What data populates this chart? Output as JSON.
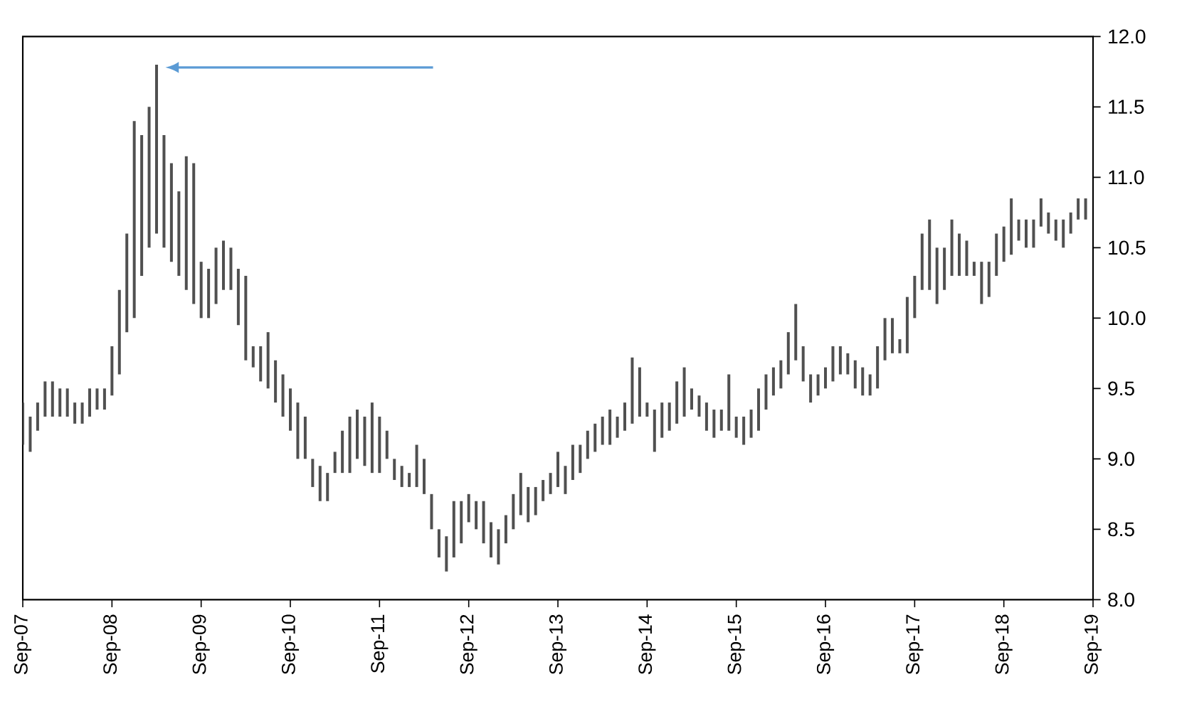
{
  "chart_data": {
    "type": "bar",
    "color": "#505050",
    "x": [
      "2007-09",
      "2007-10",
      "2007-11",
      "2007-12",
      "2008-01",
      "2008-02",
      "2008-03",
      "2008-04",
      "2008-05",
      "2008-06",
      "2008-07",
      "2008-08",
      "2008-09",
      "2008-10",
      "2008-11",
      "2008-12",
      "2009-01",
      "2009-02",
      "2009-03",
      "2009-04",
      "2009-05",
      "2009-06",
      "2009-07",
      "2009-08",
      "2009-09",
      "2009-10",
      "2009-11",
      "2009-12",
      "2010-01",
      "2010-02",
      "2010-03",
      "2010-04",
      "2010-05",
      "2010-06",
      "2010-07",
      "2010-08",
      "2010-09",
      "2010-10",
      "2010-11",
      "2010-12",
      "2011-01",
      "2011-02",
      "2011-03",
      "2011-04",
      "2011-05",
      "2011-06",
      "2011-07",
      "2011-08",
      "2011-09",
      "2011-10",
      "2011-11",
      "2011-12",
      "2012-01",
      "2012-02",
      "2012-03",
      "2012-04",
      "2012-05",
      "2012-06",
      "2012-07",
      "2012-08",
      "2012-09",
      "2012-10",
      "2012-11",
      "2012-12",
      "2013-01",
      "2013-02",
      "2013-03",
      "2013-04",
      "2013-05",
      "2013-06",
      "2013-07",
      "2013-08",
      "2013-09",
      "2013-10",
      "2013-11",
      "2013-12",
      "2014-01",
      "2014-02",
      "2014-03",
      "2014-04",
      "2014-05",
      "2014-06",
      "2014-07",
      "2014-08",
      "2014-09",
      "2014-10",
      "2014-11",
      "2014-12",
      "2015-01",
      "2015-02",
      "2015-03",
      "2015-04",
      "2015-05",
      "2015-06",
      "2015-07",
      "2015-08",
      "2015-09",
      "2015-10",
      "2015-11",
      "2015-12",
      "2016-01",
      "2016-02",
      "2016-03",
      "2016-04",
      "2016-05",
      "2016-06",
      "2016-07",
      "2016-08",
      "2016-09",
      "2016-10",
      "2016-11",
      "2016-12",
      "2017-01",
      "2017-02",
      "2017-03",
      "2017-04",
      "2017-05",
      "2017-06",
      "2017-07",
      "2017-08",
      "2017-09",
      "2017-10",
      "2017-11",
      "2017-12",
      "2018-01",
      "2018-02",
      "2018-03",
      "2018-04",
      "2018-05",
      "2018-06",
      "2018-07",
      "2018-08",
      "2018-09",
      "2018-10",
      "2018-11",
      "2018-12",
      "2019-01",
      "2019-02",
      "2019-03",
      "2019-04",
      "2019-05",
      "2019-06",
      "2019-07",
      "2019-08"
    ],
    "base": [
      9.1,
      9.05,
      9.2,
      9.3,
      9.3,
      9.3,
      9.3,
      9.25,
      9.25,
      9.3,
      9.35,
      9.35,
      9.45,
      9.6,
      9.9,
      10.0,
      10.3,
      10.5,
      10.6,
      10.5,
      10.4,
      10.3,
      10.2,
      10.1,
      10.0,
      10.0,
      10.1,
      10.2,
      10.2,
      9.95,
      9.7,
      9.65,
      9.55,
      9.5,
      9.4,
      9.3,
      9.2,
      9.0,
      9.0,
      8.8,
      8.7,
      8.7,
      8.9,
      8.9,
      8.9,
      9.0,
      8.95,
      8.9,
      8.9,
      9.0,
      8.85,
      8.8,
      8.8,
      8.8,
      8.75,
      8.5,
      8.3,
      8.2,
      8.3,
      8.4,
      8.55,
      8.5,
      8.4,
      8.3,
      8.25,
      8.4,
      8.5,
      8.6,
      8.55,
      8.6,
      8.7,
      8.75,
      8.8,
      8.75,
      8.85,
      8.9,
      9.0,
      9.05,
      9.1,
      9.1,
      9.15,
      9.2,
      9.25,
      9.3,
      9.3,
      9.05,
      9.15,
      9.2,
      9.25,
      9.3,
      9.35,
      9.3,
      9.2,
      9.15,
      9.2,
      9.2,
      9.15,
      9.1,
      9.15,
      9.2,
      9.35,
      9.45,
      9.5,
      9.6,
      9.7,
      9.55,
      9.4,
      9.45,
      9.5,
      9.55,
      9.6,
      9.6,
      9.5,
      9.45,
      9.45,
      9.5,
      9.7,
      9.75,
      9.75,
      9.75,
      10.0,
      10.2,
      10.2,
      10.1,
      10.2,
      10.3,
      10.3,
      10.3,
      10.3,
      10.1,
      10.15,
      10.3,
      10.4,
      10.45,
      10.55,
      10.5,
      10.5,
      10.65,
      10.6,
      10.55,
      10.5,
      10.6,
      10.7,
      10.7
    ],
    "values": [
      0.3,
      0.25,
      0.2,
      0.25,
      0.25,
      0.2,
      0.2,
      0.15,
      0.15,
      0.2,
      0.15,
      0.15,
      0.35,
      0.6,
      0.7,
      1.4,
      1.0,
      1.0,
      1.2,
      0.8,
      0.7,
      0.6,
      0.95,
      1.0,
      0.4,
      0.35,
      0.4,
      0.35,
      0.3,
      0.4,
      0.6,
      0.15,
      0.25,
      0.4,
      0.3,
      0.3,
      0.3,
      0.4,
      0.3,
      0.2,
      0.25,
      0.2,
      0.15,
      0.3,
      0.4,
      0.35,
      0.35,
      0.5,
      0.4,
      0.2,
      0.15,
      0.15,
      0.1,
      0.3,
      0.25,
      0.25,
      0.2,
      0.25,
      0.4,
      0.3,
      0.2,
      0.2,
      0.3,
      0.25,
      0.25,
      0.2,
      0.25,
      0.3,
      0.25,
      0.2,
      0.15,
      0.15,
      0.25,
      0.2,
      0.25,
      0.2,
      0.2,
      0.2,
      0.2,
      0.25,
      0.15,
      0.2,
      0.47,
      0.35,
      0.1,
      0.3,
      0.25,
      0.2,
      0.3,
      0.35,
      0.15,
      0.15,
      0.2,
      0.2,
      0.15,
      0.4,
      0.15,
      0.2,
      0.2,
      0.3,
      0.25,
      0.2,
      0.2,
      0.3,
      0.4,
      0.25,
      0.2,
      0.15,
      0.15,
      0.25,
      0.2,
      0.15,
      0.2,
      0.2,
      0.15,
      0.3,
      0.3,
      0.25,
      0.1,
      0.4,
      0.3,
      0.4,
      0.5,
      0.4,
      0.3,
      0.4,
      0.3,
      0.25,
      0.1,
      0.3,
      0.25,
      0.3,
      0.25,
      0.4,
      0.15,
      0.2,
      0.2,
      0.2,
      0.15,
      0.15,
      0.2,
      0.15,
      0.15,
      0.15
    ],
    "xlim": [
      "2007-09",
      "2019-09"
    ],
    "xticks": [
      {
        "value": "2007-09",
        "label": "Sep-07"
      },
      {
        "value": "2008-09",
        "label": "Sep-08"
      },
      {
        "value": "2009-09",
        "label": "Sep-09"
      },
      {
        "value": "2010-09",
        "label": "Sep-10"
      },
      {
        "value": "2011-09",
        "label": "Sep-11"
      },
      {
        "value": "2012-09",
        "label": "Sep-12"
      },
      {
        "value": "2013-09",
        "label": "Sep-13"
      },
      {
        "value": "2014-09",
        "label": "Sep-14"
      },
      {
        "value": "2015-09",
        "label": "Sep-15"
      },
      {
        "value": "2016-09",
        "label": "Sep-16"
      },
      {
        "value": "2017-09",
        "label": "Sep-17"
      },
      {
        "value": "2018-09",
        "label": "Sep-18"
      },
      {
        "value": "2019-09",
        "label": "Sep-19"
      }
    ],
    "ylim": [
      8.0,
      12.0
    ],
    "yticks": [
      {
        "value": 8.0,
        "label": "8.0"
      },
      {
        "value": 8.5,
        "label": "8.5"
      },
      {
        "value": 9.0,
        "label": "9.0"
      },
      {
        "value": 9.5,
        "label": "9.5"
      },
      {
        "value": 10.0,
        "label": "10.0"
      },
      {
        "value": 10.5,
        "label": "10.5"
      },
      {
        "value": 11.0,
        "label": "11.0"
      },
      {
        "value": 11.5,
        "label": "11.5"
      },
      {
        "value": 12.0,
        "label": "12.0"
      }
    ]
  }
}
